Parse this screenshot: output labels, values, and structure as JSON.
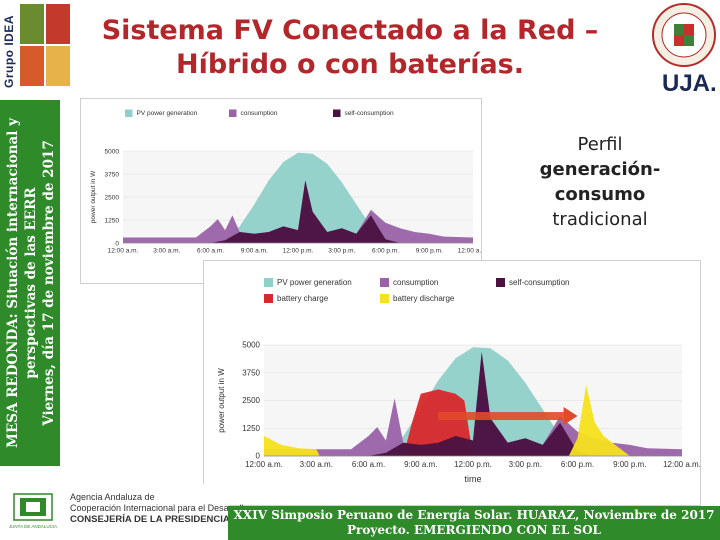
{
  "header": {
    "logo_left_text": "Grupo IDEA",
    "title_line1": "Sistema FV Conectado a la Red –",
    "title_line2": "Híbrido o con baterías.",
    "logo_right_text": "UJA."
  },
  "side_banner": {
    "line1": "MESA REDONDA: Situación internacional y",
    "line2": "perspectivas de las EERR",
    "line3": "Viernes, día 17 de noviembre de 2017"
  },
  "caption": {
    "line1": "Perfil",
    "line2": "generación-consumo",
    "line3": "tradicional"
  },
  "colors": {
    "pv": "#8fd0c8",
    "consumption": "#9a62a8",
    "self_consumption": "#4a1240",
    "battery_charge": "#d8282c",
    "battery_discharge": "#f5e21c",
    "banner_green": "#2f8a2a",
    "title_red": "#b3262a"
  },
  "chart_data": [
    {
      "type": "area",
      "ylabel": "power output in W",
      "ylim": [
        0,
        5000
      ],
      "yticks": [
        "5000",
        "3750",
        "2500",
        "1250",
        "0"
      ],
      "xticks": [
        "12:00 a.m.",
        "3:00 a.m.",
        "6:00 a.m.",
        "9:00 a.m.",
        "12:00 p.m.",
        "3:00 p.m.",
        "6:00 p.m.",
        "9:00 p.m.",
        "12:00 a.m."
      ],
      "legend": [
        "PV power generation",
        "consumption",
        "self-consumption"
      ],
      "legend_position": "top",
      "series": [
        {
          "name": "PV power generation",
          "x": [
            0,
            6,
            7,
            8,
            9,
            10,
            11,
            12,
            13,
            14,
            15,
            16,
            17,
            18,
            19,
            24
          ],
          "values": [
            0,
            0,
            150,
            900,
            2100,
            3400,
            4400,
            4900,
            4850,
            4300,
            3300,
            2100,
            900,
            200,
            0,
            0
          ]
        },
        {
          "name": "consumption",
          "x": [
            0,
            5,
            6,
            6.5,
            7,
            7.5,
            8,
            9,
            10,
            11,
            12,
            12.5,
            13,
            14,
            15,
            16,
            17,
            18,
            19,
            20,
            21,
            22,
            24
          ],
          "values": [
            300,
            300,
            900,
            1300,
            700,
            1500,
            600,
            500,
            600,
            900,
            700,
            3400,
            1700,
            600,
            800,
            500,
            1800,
            1100,
            800,
            600,
            500,
            350,
            300
          ]
        },
        {
          "name": "self-consumption",
          "x": [
            0,
            6,
            7,
            8,
            9,
            10,
            11,
            12,
            12.5,
            13,
            14,
            15,
            16,
            17,
            18,
            19,
            24
          ],
          "values": [
            0,
            0,
            150,
            600,
            500,
            600,
            900,
            700,
            3400,
            1700,
            600,
            800,
            500,
            1500,
            200,
            0,
            0
          ]
        }
      ]
    },
    {
      "type": "area",
      "xlabel": "time",
      "ylabel": "power output in W",
      "ylim": [
        0,
        5000
      ],
      "yticks": [
        "5000",
        "3750",
        "2500",
        "1250",
        "0"
      ],
      "xticks": [
        "12:00 a.m.",
        "3:00 a.m.",
        "6:00 a.m.",
        "9:00 a.m.",
        "12:00 p.m.",
        "3:00 p.m.",
        "6:00 p.m.",
        "9:00 p.m.",
        "12:00 a.m."
      ],
      "legend": [
        "PV power generation",
        "consumption",
        "self-consumption",
        "battery charge",
        "battery discharge"
      ],
      "legend_position": "top",
      "series": [
        {
          "name": "PV power generation",
          "x": [
            0,
            6,
            7,
            8,
            9,
            10,
            11,
            12,
            13,
            14,
            15,
            16,
            17,
            18,
            19,
            24
          ],
          "values": [
            0,
            0,
            150,
            900,
            2100,
            3400,
            4400,
            4900,
            4850,
            4300,
            3300,
            2100,
            900,
            200,
            0,
            0
          ]
        },
        {
          "name": "consumption",
          "x": [
            0,
            5,
            6,
            6.5,
            7,
            7.5,
            8,
            9,
            10,
            11,
            12,
            12.5,
            13,
            14,
            15,
            16,
            17,
            18,
            19,
            20,
            21,
            22,
            24
          ],
          "values": [
            300,
            300,
            900,
            1300,
            700,
            2600,
            600,
            500,
            600,
            900,
            700,
            4700,
            1700,
            600,
            800,
            500,
            1800,
            1100,
            800,
            600,
            500,
            350,
            300
          ]
        },
        {
          "name": "battery charge",
          "x": [
            8,
            8.5,
            9,
            9.5,
            10,
            10.5,
            11,
            11.5,
            12
          ],
          "values": [
            0,
            1500,
            2800,
            2900,
            3000,
            2900,
            2800,
            2500,
            0
          ]
        },
        {
          "name": "self-consumption",
          "x": [
            0,
            6,
            7,
            8,
            9,
            10,
            11,
            12,
            12.5,
            13,
            14,
            15,
            16,
            17,
            18,
            19,
            24
          ],
          "values": [
            0,
            0,
            150,
            600,
            500,
            600,
            900,
            700,
            4700,
            1700,
            600,
            800,
            500,
            1500,
            200,
            0,
            0
          ]
        },
        {
          "name": "battery discharge",
          "x": [
            0,
            1,
            2,
            3,
            3.2,
            17.5,
            18,
            18.5,
            19,
            19.5,
            20,
            20.5,
            21,
            24
          ],
          "values": [
            900,
            500,
            350,
            300,
            0,
            0,
            800,
            3200,
            1500,
            900,
            600,
            300,
            0,
            0
          ]
        }
      ]
    }
  ],
  "footer": {
    "agency_line1": "Agencia Andaluza de",
    "agency_line2": "Cooperación Internacional para el Desarrollo",
    "agency_dept": "CONSEJERÍA DE LA PRESIDENCIA",
    "emblem_text": "JUNTA DE ANDALUCIA",
    "bar_line1": "XXIV Simposio Peruano de Energía Solar. HUARAZ, Noviembre de 2017",
    "bar_line2": "Proyecto. EMERGIENDO CON EL SOL"
  }
}
